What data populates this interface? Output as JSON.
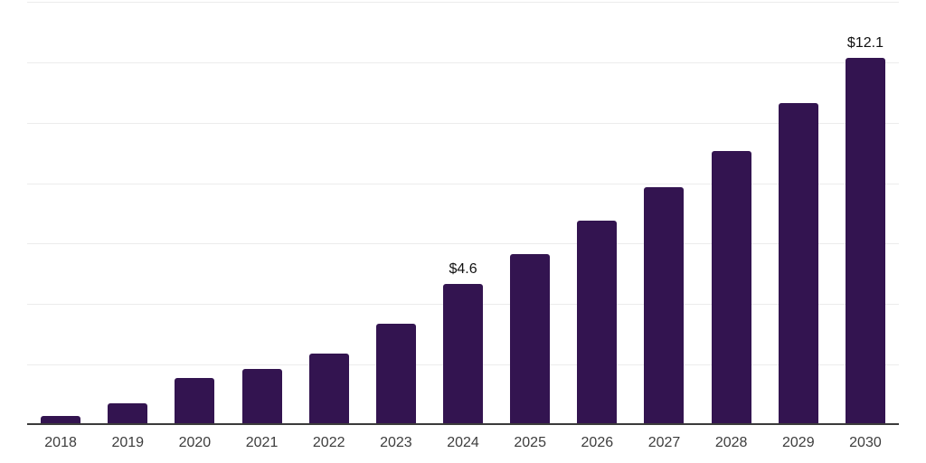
{
  "chart_data": {
    "type": "bar",
    "title": "",
    "xlabel": "",
    "ylabel": "",
    "categories": [
      "2018",
      "2019",
      "2020",
      "2021",
      "2022",
      "2023",
      "2024",
      "2025",
      "2026",
      "2027",
      "2028",
      "2029",
      "2030"
    ],
    "values": [
      0.25,
      0.65,
      1.5,
      1.8,
      2.3,
      3.3,
      4.6,
      5.6,
      6.7,
      7.8,
      9.0,
      10.6,
      12.1
    ],
    "value_labels": [
      "",
      "",
      "",
      "",
      "",
      "",
      "$4.6",
      "",
      "",
      "",
      "",
      "",
      "$12.1"
    ],
    "ylim": [
      0,
      14
    ],
    "gridline_values": [
      2,
      4,
      6,
      8,
      10,
      12,
      14
    ],
    "grid": true,
    "legend": false,
    "colors": {
      "bar": "#331450",
      "axis": "#3b3b3b",
      "gridline": "#ececec",
      "tick_label": "#3d3d3d",
      "value_label": "#111111",
      "background": "#ffffff"
    }
  }
}
